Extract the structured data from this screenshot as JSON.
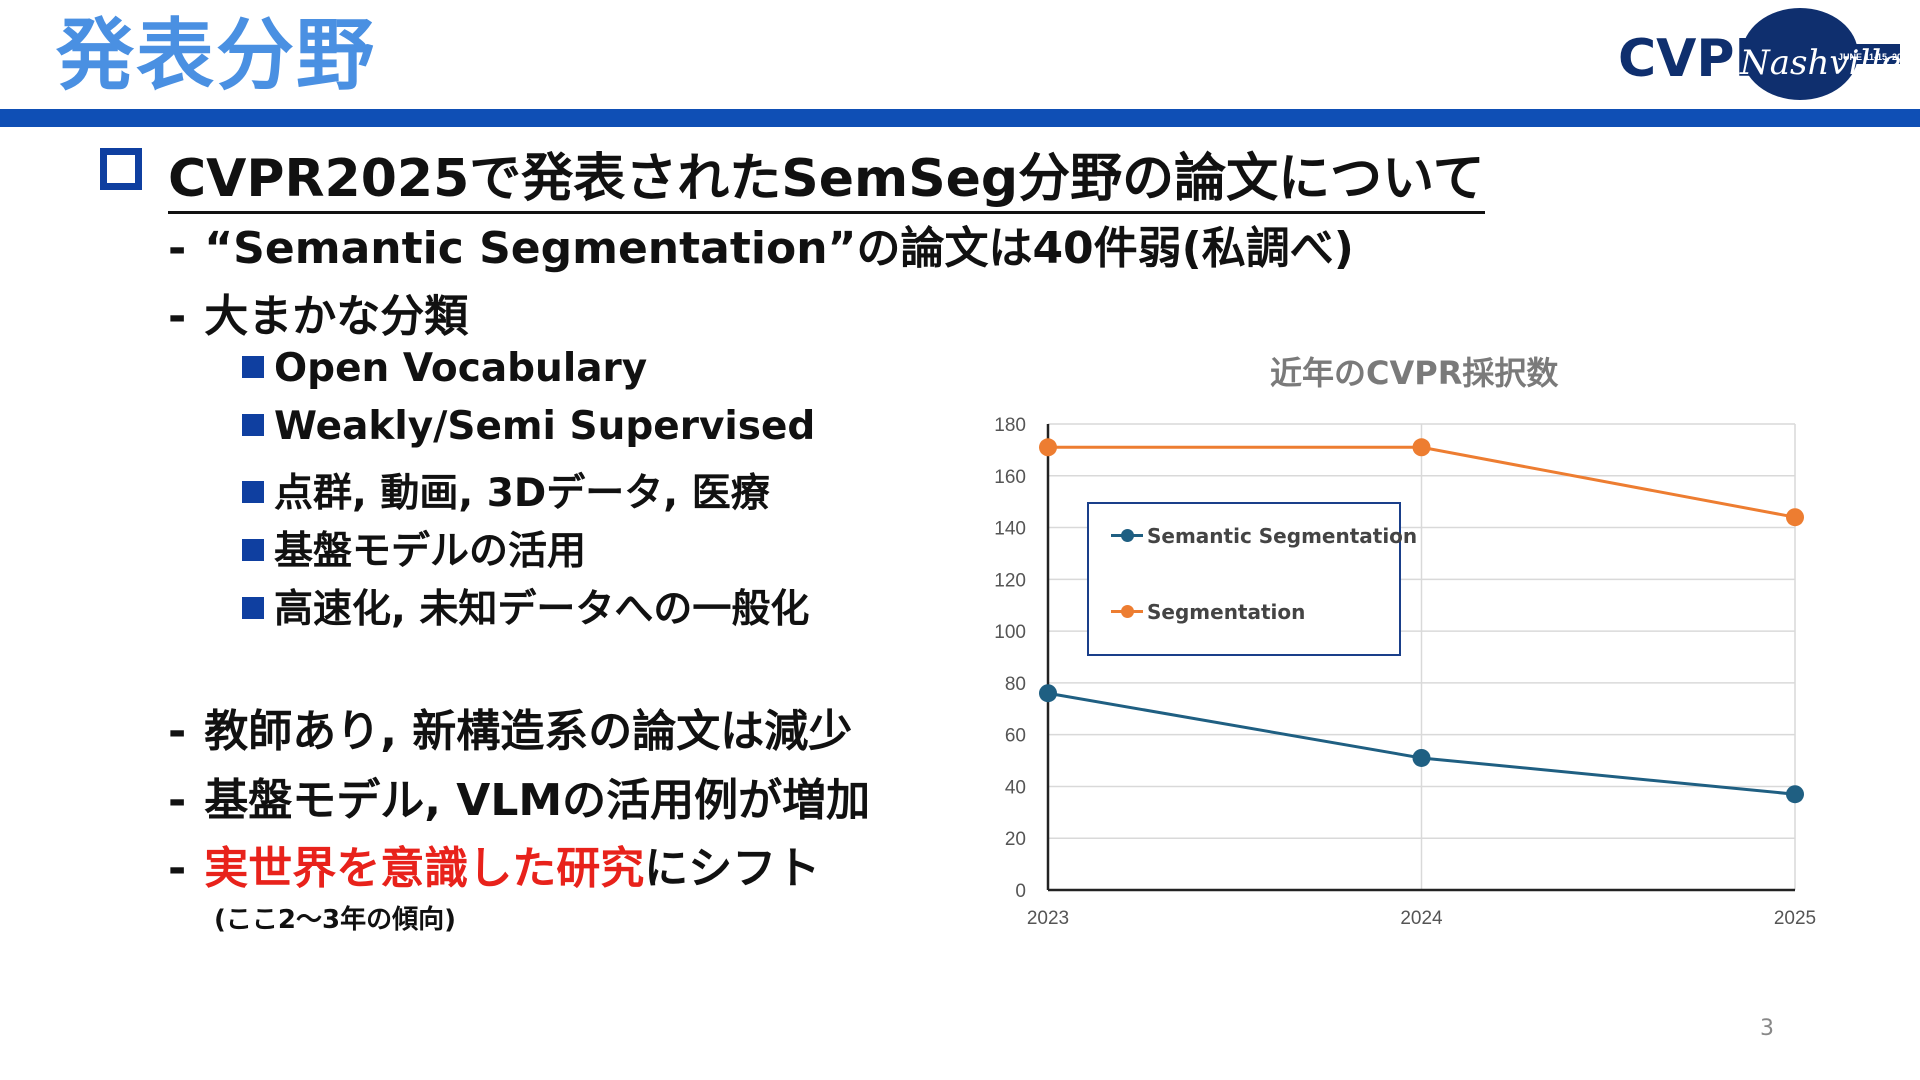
{
  "slide": {
    "title": "発表分野",
    "headline": "CVPR2025で発表されたSemSeg分野の論文について",
    "bullet_sem_count": "“Semantic Segmentation”の論文は40件弱(私調べ)",
    "bullet_categories": "大まかな分類",
    "categories": [
      "Open Vocabulary",
      "Weakly/Semi Supervised",
      "点群, 動画, 3Dデータ, 医療",
      "基盤モデルの活用",
      "高速化, 未知データへの一般化"
    ],
    "trend1": "教師あり, 新構造系の論文は減少",
    "trend2": "基盤モデル, VLMの活用例が増加",
    "trend3_red": "実世界を意識した研究",
    "trend3_rest": "にシフト",
    "trend_note": "(ここ2～3年の傾向)",
    "page_number": "3"
  },
  "logo": {
    "text": "CVPR",
    "script": "Nashville",
    "dates": "JUNE 11-15, 2025",
    "color": "#0f2f6e"
  },
  "colors": {
    "title": "#4a90e2",
    "header_bar": "#0f4fb5",
    "accent_red": "#e8221b",
    "bullet": "#0f3fa0"
  },
  "chart_data": {
    "type": "line",
    "title": "近年のCVPR採択数",
    "x": [
      "2023",
      "2024",
      "2025"
    ],
    "ylim": [
      0,
      180
    ],
    "yticks": [
      0,
      20,
      40,
      60,
      80,
      100,
      120,
      140,
      160,
      180
    ],
    "grid": true,
    "legend_position": "upper-left inside",
    "series": [
      {
        "name": "Semantic Segmentation",
        "values": [
          76,
          51,
          37
        ],
        "color": "#1f5f82"
      },
      {
        "name": "Segmentation",
        "values": [
          171,
          171,
          144
        ],
        "color": "#ed7d31"
      }
    ]
  }
}
